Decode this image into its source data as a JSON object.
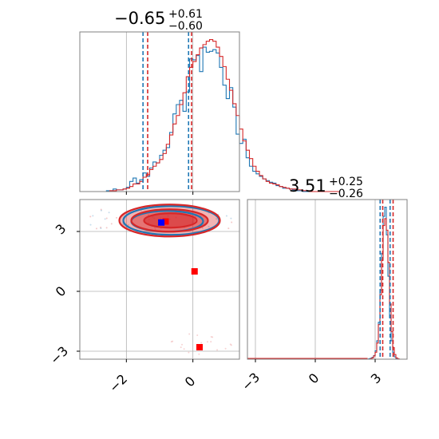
{
  "chart_data": [
    {
      "type": "histogram",
      "panel": "diagonal-x",
      "title": {
        "median": "−0.65",
        "plus": "+0.61",
        "minus": "−0.60"
      },
      "xlim": [
        -3.4,
        1.4
      ],
      "grid": true,
      "series": [
        {
          "color": "#1f77b4",
          "bins_start": -3.4,
          "bin_width": 0.1,
          "values": [
            0,
            0,
            0,
            0,
            0,
            0,
            0,
            0,
            1,
            1,
            3,
            2,
            2,
            3,
            5,
            12,
            16,
            10,
            14,
            22,
            18,
            28,
            35,
            34,
            43,
            49,
            52,
            70,
            92,
            103,
            108,
            95,
            118,
            157,
            156,
            161,
            142,
            171,
            165,
            166,
            168,
            164,
            147,
            126,
            110,
            123,
            100,
            68,
            57,
            62,
            40,
            30,
            24,
            21,
            18,
            15,
            13,
            11,
            10,
            7,
            6,
            4,
            4,
            3,
            2,
            1,
            1,
            0,
            0,
            0,
            0,
            0,
            0,
            0,
            0,
            0,
            0,
            0
          ],
          "quantiles": [
            -1.5,
            -0.13
          ]
        },
        {
          "color": "#d62728",
          "bins_start": -3.4,
          "bin_width": 0.1,
          "values": [
            0,
            0,
            0,
            0,
            0,
            0,
            0,
            0,
            0,
            1,
            1,
            2,
            2,
            3,
            4,
            6,
            9,
            9,
            12,
            17,
            20,
            26,
            30,
            34,
            38,
            45,
            56,
            67,
            80,
            90,
            103,
            117,
            136,
            147,
            154,
            162,
            170,
            174,
            178,
            180,
            178,
            171,
            160,
            148,
            133,
            120,
            104,
            90,
            74,
            60,
            49,
            39,
            30,
            24,
            19,
            15,
            12,
            10,
            9,
            8,
            6,
            5,
            4,
            3,
            3,
            2,
            2,
            1,
            1,
            0,
            0,
            0,
            0,
            0,
            0,
            0,
            0,
            0
          ],
          "quantiles": [
            -1.36,
            -0.04
          ]
        }
      ]
    },
    {
      "type": "contour",
      "panel": "lower-left",
      "xlim": [
        -3.4,
        1.4
      ],
      "ylim": [
        -3.4,
        4.6
      ],
      "grid": true,
      "fill_color": "#d62728",
      "line_colors": [
        "#1f77b4",
        "#d62728"
      ],
      "contour_center": [
        -0.7,
        3.55
      ],
      "markers": [
        {
          "x": -0.95,
          "y": 3.45,
          "color": "#0000ff"
        },
        {
          "x": -0.82,
          "y": 3.5,
          "color": "#ff0000"
        },
        {
          "x": 0.05,
          "y": 1.0,
          "color": "#ff0000"
        },
        {
          "x": 0.2,
          "y": -2.8,
          "color": "#ff0000"
        }
      ]
    },
    {
      "type": "histogram",
      "panel": "diagonal-y",
      "title": {
        "median": "3.51",
        "plus": "+0.25",
        "minus": "−0.26"
      },
      "xlim": [
        -3.4,
        4.6
      ],
      "grid": true,
      "series": [
        {
          "color": "#1f77b4",
          "bins_start": 2.6,
          "bin_width": 0.08,
          "values": [
            0,
            1,
            2,
            4,
            8,
            18,
            40,
            80,
            150,
            230,
            310,
            330,
            270,
            180,
            90,
            40,
            15,
            5,
            1,
            0,
            0
          ],
          "quantiles": [
            3.25,
            3.75
          ]
        },
        {
          "color": "#d62728",
          "bins_start": 2.6,
          "bin_width": 0.08,
          "values": [
            0,
            0,
            1,
            3,
            7,
            15,
            35,
            75,
            140,
            215,
            290,
            305,
            280,
            210,
            120,
            60,
            25,
            10,
            3,
            1,
            0
          ],
          "quantiles": [
            3.38,
            3.9
          ]
        }
      ]
    }
  ],
  "axes": {
    "x_ticks_left": [
      "−2",
      "0"
    ],
    "y_ticks_left": [
      "3",
      "0",
      "−3"
    ],
    "x_ticks_right": [
      "−3",
      "0",
      "3"
    ]
  }
}
